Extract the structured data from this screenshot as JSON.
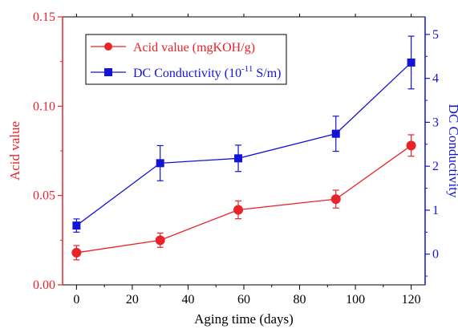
{
  "chart_data": {
    "type": "line",
    "x": [
      0,
      30,
      58,
      93,
      120
    ],
    "xlabel": "Aging time (days)",
    "xlim": [
      -5,
      125
    ],
    "xticks": [
      0,
      20,
      40,
      60,
      80,
      100,
      120
    ],
    "grid": false,
    "legend_position": "top-left",
    "series": [
      {
        "name": "Acid value (mgKOH/g)",
        "axis": "left",
        "color": "#e8232a",
        "marker": "circle",
        "values": [
          0.018,
          0.025,
          0.042,
          0.048,
          0.078
        ],
        "error": [
          0.004,
          0.004,
          0.005,
          0.005,
          0.006
        ]
      },
      {
        "name_main": "DC Conductivity (10",
        "name_sup": "-11",
        "name_tail": " S/m)",
        "axis": "right",
        "color": "#1414d4",
        "marker": "square",
        "values": [
          0.65,
          2.07,
          2.18,
          2.74,
          4.36
        ],
        "error": [
          0.15,
          0.4,
          0.3,
          0.4,
          0.6
        ]
      }
    ],
    "y_left": {
      "label": "Acid value",
      "color": "#e8232a",
      "lim": [
        0,
        0.15
      ],
      "ticks": [
        "0.00",
        "0.05",
        "0.10",
        "0.15"
      ]
    },
    "y_right": {
      "label": "DC Conductivity",
      "color": "#1414d4",
      "lim": [
        -0.7,
        5.4
      ],
      "ticks": [
        "0",
        "1",
        "2",
        "3",
        "4",
        "5"
      ]
    }
  }
}
